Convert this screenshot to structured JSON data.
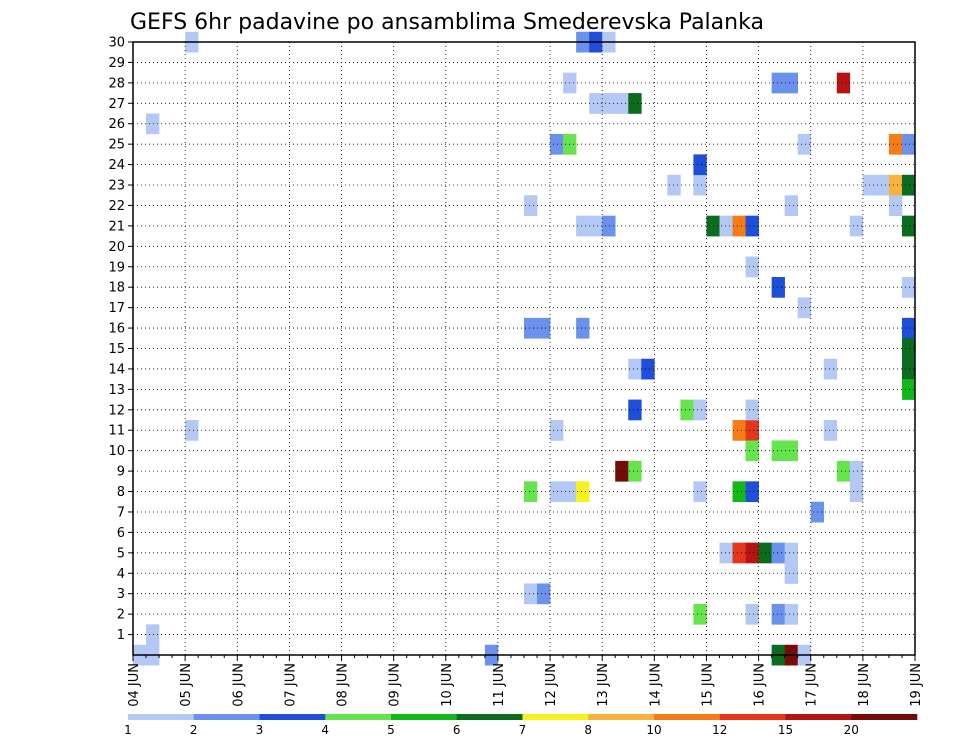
{
  "chart_data": {
    "type": "heatmap",
    "title": "GEFS 6hr padavine po ansamblima Smederevska Palanka",
    "xlabel": "",
    "ylabel": "",
    "x_ticks": [
      "04 JUN",
      "05 JUN",
      "06 JUN",
      "07 JUN",
      "08 JUN",
      "09 JUN",
      "10 JUN",
      "11 JUN",
      "12 JUN",
      "13 JUN",
      "14 JUN",
      "15 JUN",
      "16 JUN",
      "17 JUN",
      "18 JUN",
      "19 JUN"
    ],
    "x_range": [
      "04 JUN 00Z",
      "19 JUN 00Z"
    ],
    "x_step": "6hr",
    "y_ticks": [
      1,
      2,
      3,
      4,
      5,
      6,
      7,
      8,
      9,
      10,
      11,
      12,
      13,
      14,
      15,
      16,
      17,
      18,
      19,
      20,
      21,
      22,
      23,
      24,
      25,
      26,
      27,
      28,
      29,
      30
    ],
    "y_range": [
      0,
      30
    ],
    "grid": true,
    "legend": {
      "position": "bottom",
      "labels": [
        "1",
        "2",
        "3",
        "4",
        "5",
        "6",
        "7",
        "8",
        "10",
        "12",
        "15",
        "20"
      ],
      "colors": [
        "#b4c8f5",
        "#6a91ec",
        "#1f4fd9",
        "#66e44e",
        "#10b819",
        "#0b6b1e",
        "#f6f21d",
        "#f8b23b",
        "#f67c16",
        "#e3361a",
        "#b51512",
        "#740c08"
      ]
    },
    "cells": [
      {
        "t": 1,
        "m": 1,
        "v": 1.5
      },
      {
        "t": 0,
        "m": 0,
        "v": 0.5
      },
      {
        "t": 1,
        "m": 0,
        "v": 1.5
      },
      {
        "t": 4,
        "m": 30,
        "v": 1.5
      },
      {
        "t": 4,
        "m": 11,
        "v": 1.5
      },
      {
        "t": 1,
        "m": 26,
        "v": 1.5
      },
      {
        "t": 27,
        "m": 0,
        "v": 2.5
      },
      {
        "t": 30,
        "m": 3,
        "v": 1.5
      },
      {
        "t": 31,
        "m": 3,
        "v": 2.5
      },
      {
        "t": 30,
        "m": 8,
        "v": 4.5
      },
      {
        "t": 30,
        "m": 16,
        "v": 2.5
      },
      {
        "t": 31,
        "m": 16,
        "v": 2.5
      },
      {
        "t": 30,
        "m": 22,
        "v": 1.5
      },
      {
        "t": 32,
        "m": 8,
        "v": 1.5
      },
      {
        "t": 32,
        "m": 11,
        "v": 1.5
      },
      {
        "t": 32,
        "m": 25,
        "v": 2.5
      },
      {
        "t": 33,
        "m": 25,
        "v": 4.5
      },
      {
        "t": 33,
        "m": 8,
        "v": 1.5
      },
      {
        "t": 33,
        "m": 28,
        "v": 1.5
      },
      {
        "t": 34,
        "m": 8,
        "v": 7.5
      },
      {
        "t": 34,
        "m": 16,
        "v": 2.5
      },
      {
        "t": 34,
        "m": 21,
        "v": 1.5
      },
      {
        "t": 34,
        "m": 30,
        "v": 2.5
      },
      {
        "t": 35,
        "m": 21,
        "v": 1.5
      },
      {
        "t": 35,
        "m": 27,
        "v": 1.5
      },
      {
        "t": 35,
        "m": 30,
        "v": 3.5
      },
      {
        "t": 36,
        "m": 21,
        "v": 2.5
      },
      {
        "t": 36,
        "m": 27,
        "v": 1.5
      },
      {
        "t": 36,
        "m": 30,
        "v": 1.5
      },
      {
        "t": 37,
        "m": 27,
        "v": 1.5
      },
      {
        "t": 37,
        "m": 9,
        "v": 25
      },
      {
        "t": 38,
        "m": 27,
        "v": 6.5
      },
      {
        "t": 38,
        "m": 9,
        "v": 4.5
      },
      {
        "t": 38,
        "m": 12,
        "v": 3.5
      },
      {
        "t": 38,
        "m": 14,
        "v": 1.5
      },
      {
        "t": 39,
        "m": 14,
        "v": 3.5
      },
      {
        "t": 41,
        "m": 23,
        "v": 1.5
      },
      {
        "t": 42,
        "m": 12,
        "v": 4.5
      },
      {
        "t": 43,
        "m": 12,
        "v": 1.5
      },
      {
        "t": 43,
        "m": 8,
        "v": 1.5
      },
      {
        "t": 43,
        "m": 2,
        "v": 4.5
      },
      {
        "t": 43,
        "m": 23,
        "v": 1.5
      },
      {
        "t": 43,
        "m": 24,
        "v": 3.5
      },
      {
        "t": 44,
        "m": 21,
        "v": 6.5
      },
      {
        "t": 45,
        "m": 21,
        "v": 1.5
      },
      {
        "t": 45,
        "m": 5,
        "v": 1.5
      },
      {
        "t": 46,
        "m": 21,
        "v": 11
      },
      {
        "t": 46,
        "m": 11,
        "v": 11
      },
      {
        "t": 46,
        "m": 8,
        "v": 5.5
      },
      {
        "t": 46,
        "m": 5,
        "v": 13.5
      },
      {
        "t": 47,
        "m": 21,
        "v": 3.5
      },
      {
        "t": 47,
        "m": 11,
        "v": 13.5
      },
      {
        "t": 47,
        "m": 8,
        "v": 3.5
      },
      {
        "t": 47,
        "m": 5,
        "v": 17.5
      },
      {
        "t": 47,
        "m": 19,
        "v": 1.5
      },
      {
        "t": 47,
        "m": 12,
        "v": 1.5
      },
      {
        "t": 47,
        "m": 10,
        "v": 4.5
      },
      {
        "t": 47,
        "m": 2,
        "v": 1.5
      },
      {
        "t": 48,
        "m": 5,
        "v": 6.5
      },
      {
        "t": 49,
        "m": 5,
        "v": 2.5
      },
      {
        "t": 49,
        "m": 18,
        "v": 3.5
      },
      {
        "t": 49,
        "m": 10,
        "v": 4.5
      },
      {
        "t": 49,
        "m": 2,
        "v": 2.5
      },
      {
        "t": 49,
        "m": 0,
        "v": 6.5
      },
      {
        "t": 49,
        "m": 28,
        "v": 2.5
      },
      {
        "t": 50,
        "m": 5,
        "v": 1.5
      },
      {
        "t": 50,
        "m": 10,
        "v": 4.5
      },
      {
        "t": 50,
        "m": 4,
        "v": 1.5
      },
      {
        "t": 50,
        "m": 2,
        "v": 1.5
      },
      {
        "t": 50,
        "m": 0,
        "v": 25
      },
      {
        "t": 50,
        "m": 22,
        "v": 1.5
      },
      {
        "t": 50,
        "m": 28,
        "v": 2.5
      },
      {
        "t": 51,
        "m": 25,
        "v": 1.5
      },
      {
        "t": 51,
        "m": 17,
        "v": 1.5
      },
      {
        "t": 51,
        "m": 0,
        "v": 1.5
      },
      {
        "t": 52,
        "m": 7,
        "v": 2.5
      },
      {
        "t": 53,
        "m": 14,
        "v": 1.5
      },
      {
        "t": 53,
        "m": 11,
        "v": 1.5
      },
      {
        "t": 54,
        "m": 28,
        "v": 17.5
      },
      {
        "t": 54,
        "m": 9,
        "v": 4.5
      },
      {
        "t": 55,
        "m": 21,
        "v": 1.5
      },
      {
        "t": 55,
        "m": 9,
        "v": 1.5
      },
      {
        "t": 55,
        "m": 8,
        "v": 1.5
      },
      {
        "t": 56,
        "m": 23,
        "v": 1.5
      },
      {
        "t": 57,
        "m": 23,
        "v": 1.5
      },
      {
        "t": 58,
        "m": 25,
        "v": 11
      },
      {
        "t": 58,
        "m": 23,
        "v": 9
      },
      {
        "t": 58,
        "m": 22,
        "v": 1.5
      },
      {
        "t": 59,
        "m": 25,
        "v": 2.5
      },
      {
        "t": 59,
        "m": 23,
        "v": 6.5
      },
      {
        "t": 59,
        "m": 21,
        "v": 6.5
      },
      {
        "t": 59,
        "m": 18,
        "v": 1.5
      },
      {
        "t": 59,
        "m": 16,
        "v": 3.5
      },
      {
        "t": 59,
        "m": 15,
        "v": 6.5
      },
      {
        "t": 59,
        "m": 14,
        "v": 6.5
      },
      {
        "t": 59,
        "m": 13,
        "v": 5.5
      }
    ]
  }
}
